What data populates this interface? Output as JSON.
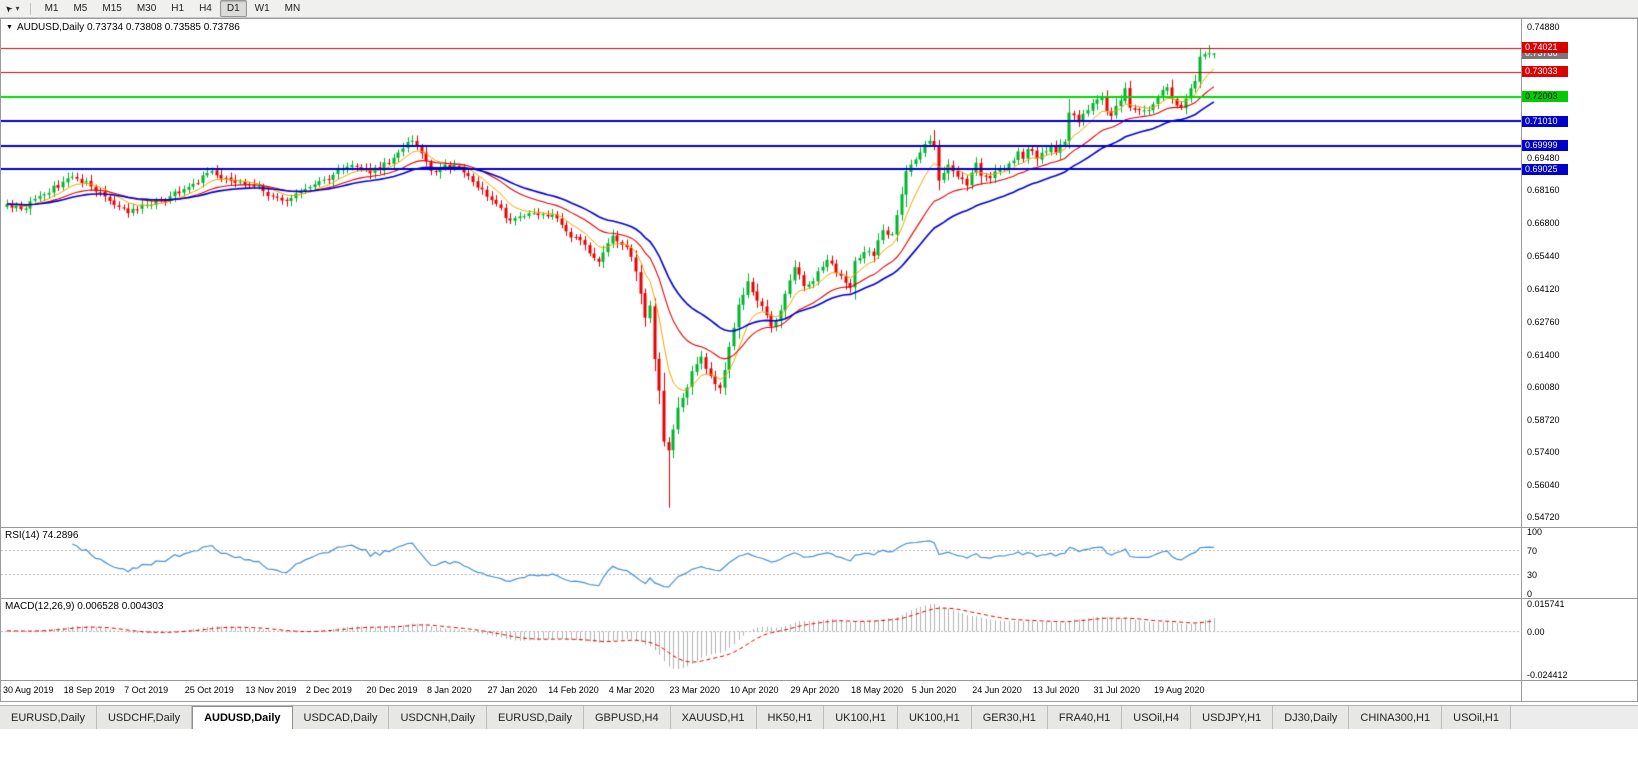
{
  "toolbar": {
    "timeframes": [
      "M1",
      "M5",
      "M15",
      "M30",
      "H1",
      "H4",
      "D1",
      "W1",
      "MN"
    ],
    "active_timeframe": "D1"
  },
  "chart_title": {
    "text": "AUDUSD,Daily  0.73734 0.73808 0.73585 0.73786"
  },
  "chart_data": {
    "type": "candlestick",
    "symbol": "AUDUSD",
    "timeframe": "Daily",
    "ohlc_display": {
      "open": "0.73734",
      "high": "0.73808",
      "low": "0.73585",
      "close": "0.73786"
    },
    "x_labels": [
      "30 Aug 2019",
      "18 Sep 2019",
      "7 Oct 2019",
      "25 Oct 2019",
      "13 Nov 2019",
      "2 Dec 2019",
      "20 Dec 2019",
      "8 Jan 2020",
      "27 Jan 2020",
      "14 Feb 2020",
      "4 Mar 2020",
      "23 Mar 2020",
      "10 Apr 2020",
      "29 Apr 2020",
      "18 May 2020",
      "5 Jun 2020",
      "24 Jun 2020",
      "13 Jul 2020",
      "31 Jul 2020",
      "19 Aug 2020"
    ],
    "y_axis": {
      "min": 0.5472,
      "max": 0.7488,
      "labels": [
        {
          "text": "0.74880",
          "value": 0.7488
        },
        {
          "text": "0.69480",
          "value": 0.6948
        },
        {
          "text": "0.68160",
          "value": 0.6816
        },
        {
          "text": "0.66800",
          "value": 0.668
        },
        {
          "text": "0.65440",
          "value": 0.6544
        },
        {
          "text": "0.64120",
          "value": 0.6412
        },
        {
          "text": "0.62760",
          "value": 0.6276
        },
        {
          "text": "0.61400",
          "value": 0.614
        },
        {
          "text": "0.60080",
          "value": 0.6008
        },
        {
          "text": "0.58720",
          "value": 0.5872
        },
        {
          "text": "0.57400",
          "value": 0.574
        },
        {
          "text": "0.56040",
          "value": 0.5604
        },
        {
          "text": "0.54720",
          "value": 0.5472
        }
      ]
    },
    "horizontal_lines": [
      {
        "price": 0.74021,
        "label": "0.74021",
        "color": "#dd0000",
        "badge_bg": "#dd0000",
        "badge_fg": "#ffffff",
        "width": 1
      },
      {
        "price": 0.73033,
        "label": "0.73033",
        "color": "#dd0000",
        "badge_bg": "#dd0000",
        "badge_fg": "#ffffff",
        "width": 1
      },
      {
        "price": 0.72003,
        "label": "0.72003",
        "color": "#00d800",
        "badge_bg": "#00cc00",
        "badge_fg": "#000000",
        "width": 2
      },
      {
        "price": 0.7101,
        "label": "0.71010",
        "color": "#0000cc",
        "badge_bg": "#0000cc",
        "badge_fg": "#ffffff",
        "width": 2
      },
      {
        "price": 0.69999,
        "label": "0.69999",
        "color": "#0000cc",
        "badge_bg": "#0000cc",
        "badge_fg": "#ffffff",
        "width": 2
      },
      {
        "price": 0.69025,
        "label": "0.69025",
        "color": "#0000cc",
        "badge_bg": "#0000cc",
        "badge_fg": "#ffffff",
        "width": 2
      }
    ],
    "bid": {
      "price": 0.73786,
      "label": "0.73786",
      "badge_bg": "#787878",
      "badge_fg": "#ffffff"
    },
    "candle_count": 260,
    "seed": 9,
    "jitter": 0.0026,
    "close_anchors": [
      [
        0,
        0.676
      ],
      [
        3,
        0.6738
      ],
      [
        8,
        0.68
      ],
      [
        14,
        0.6872
      ],
      [
        18,
        0.6832
      ],
      [
        22,
        0.6772
      ],
      [
        26,
        0.6722
      ],
      [
        30,
        0.6756
      ],
      [
        35,
        0.6792
      ],
      [
        39,
        0.683
      ],
      [
        44,
        0.6895
      ],
      [
        48,
        0.6856
      ],
      [
        52,
        0.684
      ],
      [
        57,
        0.6792
      ],
      [
        60,
        0.6772
      ],
      [
        65,
        0.683
      ],
      [
        70,
        0.688
      ],
      [
        74,
        0.692
      ],
      [
        78,
        0.6886
      ],
      [
        83,
        0.695
      ],
      [
        87,
        0.702
      ],
      [
        91,
        0.6896
      ],
      [
        96,
        0.692
      ],
      [
        100,
        0.685
      ],
      [
        104,
        0.6776
      ],
      [
        108,
        0.6692
      ],
      [
        112,
        0.6722
      ],
      [
        117,
        0.6716
      ],
      [
        121,
        0.6622
      ],
      [
        124,
        0.6592
      ],
      [
        127,
        0.6522
      ],
      [
        130,
        0.663
      ],
      [
        133,
        0.6582
      ],
      [
        135,
        0.6482
      ],
      [
        137,
        0.6292
      ],
      [
        138,
        0.6342
      ],
      [
        139,
        0.6122
      ],
      [
        140,
        0.5992
      ],
      [
        141,
        0.5782
      ],
      [
        142,
        0.5746
      ],
      [
        143,
        0.5832
      ],
      [
        144,
        0.5922
      ],
      [
        145,
        0.5962
      ],
      [
        147,
        0.6072
      ],
      [
        149,
        0.6132
      ],
      [
        151,
        0.6052
      ],
      [
        153,
        0.6002
      ],
      [
        155,
        0.6172
      ],
      [
        157,
        0.6346
      ],
      [
        159,
        0.6442
      ],
      [
        161,
        0.6362
      ],
      [
        163,
        0.6302
      ],
      [
        164,
        0.6256
      ],
      [
        166,
        0.6322
      ],
      [
        169,
        0.65
      ],
      [
        171,
        0.6422
      ],
      [
        173,
        0.6442
      ],
      [
        176,
        0.653
      ],
      [
        178,
        0.6476
      ],
      [
        181,
        0.6416
      ],
      [
        182,
        0.6526
      ],
      [
        184,
        0.6562
      ],
      [
        186,
        0.6546
      ],
      [
        188,
        0.6652
      ],
      [
        190,
        0.6636
      ],
      [
        192,
        0.68
      ],
      [
        193,
        0.6895
      ],
      [
        194,
        0.6922
      ],
      [
        196,
        0.6972
      ],
      [
        198,
        0.702
      ],
      [
        199,
        0.7
      ],
      [
        200,
        0.6856
      ],
      [
        202,
        0.6922
      ],
      [
        204,
        0.6872
      ],
      [
        206,
        0.6836
      ],
      [
        208,
        0.693
      ],
      [
        209,
        0.6876
      ],
      [
        211,
        0.6866
      ],
      [
        213,
        0.6906
      ],
      [
        215,
        0.6926
      ],
      [
        217,
        0.6976
      ],
      [
        218,
        0.6946
      ],
      [
        219,
        0.6986
      ],
      [
        221,
        0.6946
      ],
      [
        223,
        0.6976
      ],
      [
        224,
        0.7
      ],
      [
        225,
        0.6972
      ],
      [
        227,
        0.7016
      ],
      [
        228,
        0.7136
      ],
      [
        230,
        0.7096
      ],
      [
        232,
        0.7146
      ],
      [
        234,
        0.719
      ],
      [
        235,
        0.7196
      ],
      [
        236,
        0.7142
      ],
      [
        237,
        0.7122
      ],
      [
        239,
        0.7186
      ],
      [
        240,
        0.7236
      ],
      [
        241,
        0.7156
      ],
      [
        243,
        0.7146
      ],
      [
        245,
        0.7146
      ],
      [
        246,
        0.717
      ],
      [
        247,
        0.7202
      ],
      [
        249,
        0.724
      ],
      [
        250,
        0.7192
      ],
      [
        252,
        0.7156
      ],
      [
        254,
        0.7236
      ],
      [
        255,
        0.7266
      ],
      [
        256,
        0.7366
      ],
      [
        257,
        0.7376
      ],
      [
        258,
        0.738
      ],
      [
        259,
        0.73786
      ]
    ],
    "special_lows": {
      "142": 0.551
    },
    "special_highs": {
      "199": 0.7064,
      "258": 0.7414
    },
    "special_last": {
      "o": 0.73734,
      "h": 0.73808,
      "l": 0.73585,
      "c": 0.73786
    },
    "moving_averages": [
      {
        "period": 8,
        "type": "ema",
        "color": "#f0a500",
        "width": 1
      },
      {
        "period": 20,
        "type": "ema",
        "color": "#e00000",
        "width": 1.1
      },
      {
        "period": 34,
        "type": "ema",
        "color": "#0000cc",
        "width": 1.6
      }
    ],
    "indicators": [
      {
        "name": "RSI",
        "label": "RSI(14) 74.2896",
        "period": 14,
        "color": "#4a90d2",
        "dashed_levels": [
          70,
          30
        ],
        "axis_labels": [
          {
            "text": "100",
            "value": 100
          },
          {
            "text": "70",
            "value": 70
          },
          {
            "text": "30",
            "value": 30
          },
          {
            "text": "0",
            "value": 0
          }
        ]
      },
      {
        "name": "MACD",
        "label": "MACD(12,26,9) 0.006528 0.004303",
        "fast": 12,
        "slow": 26,
        "signal": 9,
        "y_max": 0.015741,
        "y_min": -0.024412,
        "axis_labels": [
          {
            "text": "0.015741",
            "value": 0.015741
          },
          {
            "text": "0.00",
            "value": 0
          },
          {
            "text": "-0.024412",
            "value": -0.024412
          }
        ]
      }
    ]
  },
  "colors": {
    "up": "#00b42c",
    "down": "#e60000",
    "macd_hist": "#b0b0b0",
    "macd_signal": "#e00000"
  },
  "tabs": [
    {
      "label": "EURUSD,Daily",
      "active": false
    },
    {
      "label": "USDCHF,Daily",
      "active": false
    },
    {
      "label": "AUDUSD,Daily",
      "active": true
    },
    {
      "label": "USDCAD,Daily",
      "active": false
    },
    {
      "label": "USDCNH,Daily",
      "active": false
    },
    {
      "label": "EURUSD,Daily",
      "active": false
    },
    {
      "label": "GBPUSD,H4",
      "active": false
    },
    {
      "label": "XAUUSD,H1",
      "active": false
    },
    {
      "label": "HK50,H1",
      "active": false
    },
    {
      "label": "UK100,H1",
      "active": false
    },
    {
      "label": "UK100,H1",
      "active": false
    },
    {
      "label": "GER30,H1",
      "active": false
    },
    {
      "label": "FRA40,H1",
      "active": false
    },
    {
      "label": "USOil,H4",
      "active": false
    },
    {
      "label": "USDJPY,H1",
      "active": false
    },
    {
      "label": "DJ30,Daily",
      "active": false
    },
    {
      "label": "CHINA300,H1",
      "active": false
    },
    {
      "label": "USOil,H1",
      "active": false
    }
  ]
}
